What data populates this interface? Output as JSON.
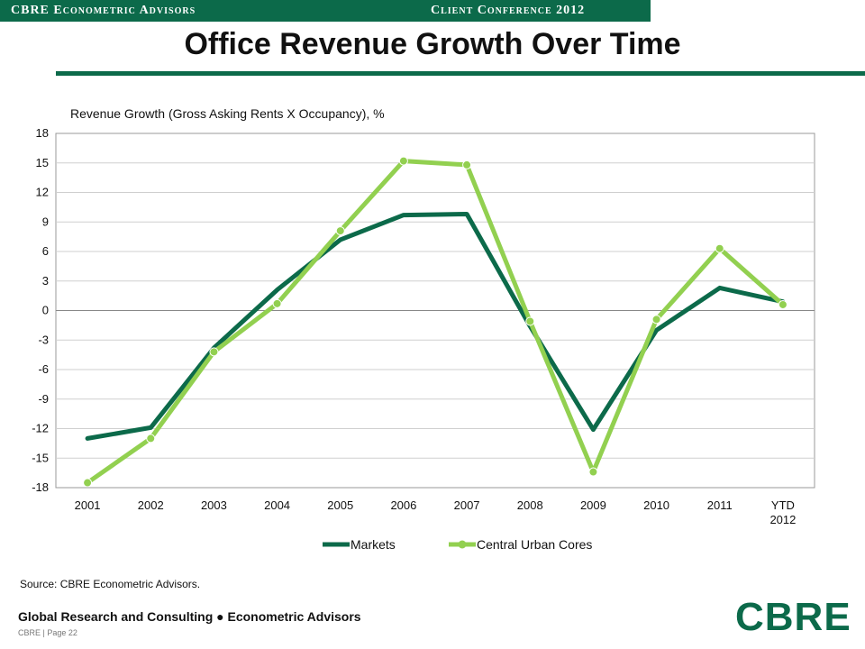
{
  "header": {
    "left_label": "CBRE Econometric Advisors",
    "right_label": "Client Conference 2012"
  },
  "page_title": "Office Revenue Growth Over Time",
  "chart_data": {
    "type": "line",
    "title": "Revenue Growth (Gross Asking Rents X Occupancy), %",
    "categories": [
      "2001",
      "2002",
      "2003",
      "2004",
      "2005",
      "2006",
      "2007",
      "2008",
      "2009",
      "2010",
      "2011",
      "YTD 2012"
    ],
    "ylim": [
      -18,
      18
    ],
    "yticks": [
      "18",
      "15",
      "12",
      "9",
      "6",
      "3",
      "0",
      "-3",
      "-6",
      "-9",
      "-12",
      "-15",
      "-18"
    ],
    "grid": true,
    "legend_position": "bottom",
    "series": [
      {
        "name": "Markets",
        "color": "#0c6a4a",
        "markers": false,
        "values": [
          -13.0,
          -11.9,
          -3.8,
          2.1,
          7.2,
          9.7,
          9.8,
          -1.6,
          -12.1,
          -2.0,
          2.3,
          0.9
        ]
      },
      {
        "name": "Central Urban Cores",
        "color": "#92d050",
        "markers": true,
        "values": [
          -17.5,
          -13.0,
          -4.2,
          0.7,
          8.1,
          15.2,
          14.8,
          -1.1,
          -16.4,
          -0.9,
          6.3,
          0.6
        ]
      }
    ]
  },
  "source_note": "Source: CBRE Econometric Advisors.",
  "footer": {
    "org": "Global Research and Consulting ● Econometric Advisors",
    "page": "CBRE | Page 22",
    "logo": "CBRE"
  }
}
